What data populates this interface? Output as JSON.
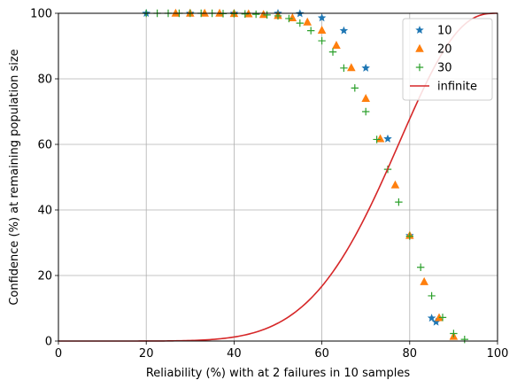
{
  "chart_data": {
    "type": "scatter",
    "title": "",
    "xlabel": "Reliability (%) with at 2 failures in 10 samples",
    "ylabel": "Confidence (%) at remaining population size",
    "xlim": [
      0,
      100
    ],
    "ylim": [
      0,
      100
    ],
    "xticks": [
      0,
      20,
      40,
      60,
      80,
      100
    ],
    "yticks": [
      0,
      20,
      40,
      60,
      80,
      100
    ],
    "grid": true,
    "legend_position": "top-right",
    "series": [
      {
        "name": "10",
        "marker": "star",
        "color": "#1f77b4",
        "x": [
          20,
          30,
          40,
          50,
          55,
          60,
          65,
          70,
          75,
          80,
          85,
          86
        ],
        "y": [
          100,
          100,
          100,
          100,
          99.9,
          98.6,
          94.7,
          83.3,
          61.7,
          32.2,
          7,
          5.8
        ]
      },
      {
        "name": "20",
        "marker": "triangle",
        "color": "#ff7f0e",
        "x": [
          26.7,
          30,
          33.3,
          36.7,
          40,
          43.3,
          46.7,
          50,
          53.3,
          56.7,
          60,
          63.3,
          66.7,
          70,
          73.3,
          76.7,
          80,
          83.3,
          86.7,
          90
        ],
        "y": [
          100,
          100,
          100,
          100,
          99.9,
          99.8,
          99.6,
          99.3,
          98.6,
          97.3,
          94.8,
          90.2,
          83.4,
          74,
          61.7,
          47.6,
          32.2,
          18.1,
          7.1,
          1.4
        ]
      },
      {
        "name": "30",
        "marker": "plus",
        "color": "#2ca02c",
        "x": [
          20,
          22.5,
          25,
          27.5,
          30,
          32.5,
          35,
          37.5,
          40,
          42.5,
          45,
          47.5,
          50,
          52.5,
          55,
          57.5,
          60,
          62.5,
          65,
          67.5,
          70,
          72.5,
          75,
          77.5,
          80,
          82.5,
          85,
          87.5,
          90,
          92.5
        ],
        "y": [
          100,
          100,
          100,
          100,
          100,
          100,
          100,
          99.9,
          99.9,
          99.8,
          99.7,
          99.5,
          99.2,
          98.4,
          97,
          94.7,
          91.6,
          88.2,
          83.3,
          77.2,
          70,
          61.5,
          52.4,
          42.4,
          32,
          22.5,
          13.8,
          7.2,
          2.3,
          0.5
        ]
      },
      {
        "name": "infinite",
        "marker": "line",
        "color": "#d62728",
        "function": "binomial_cdf_le_2_failures_n10"
      }
    ]
  }
}
